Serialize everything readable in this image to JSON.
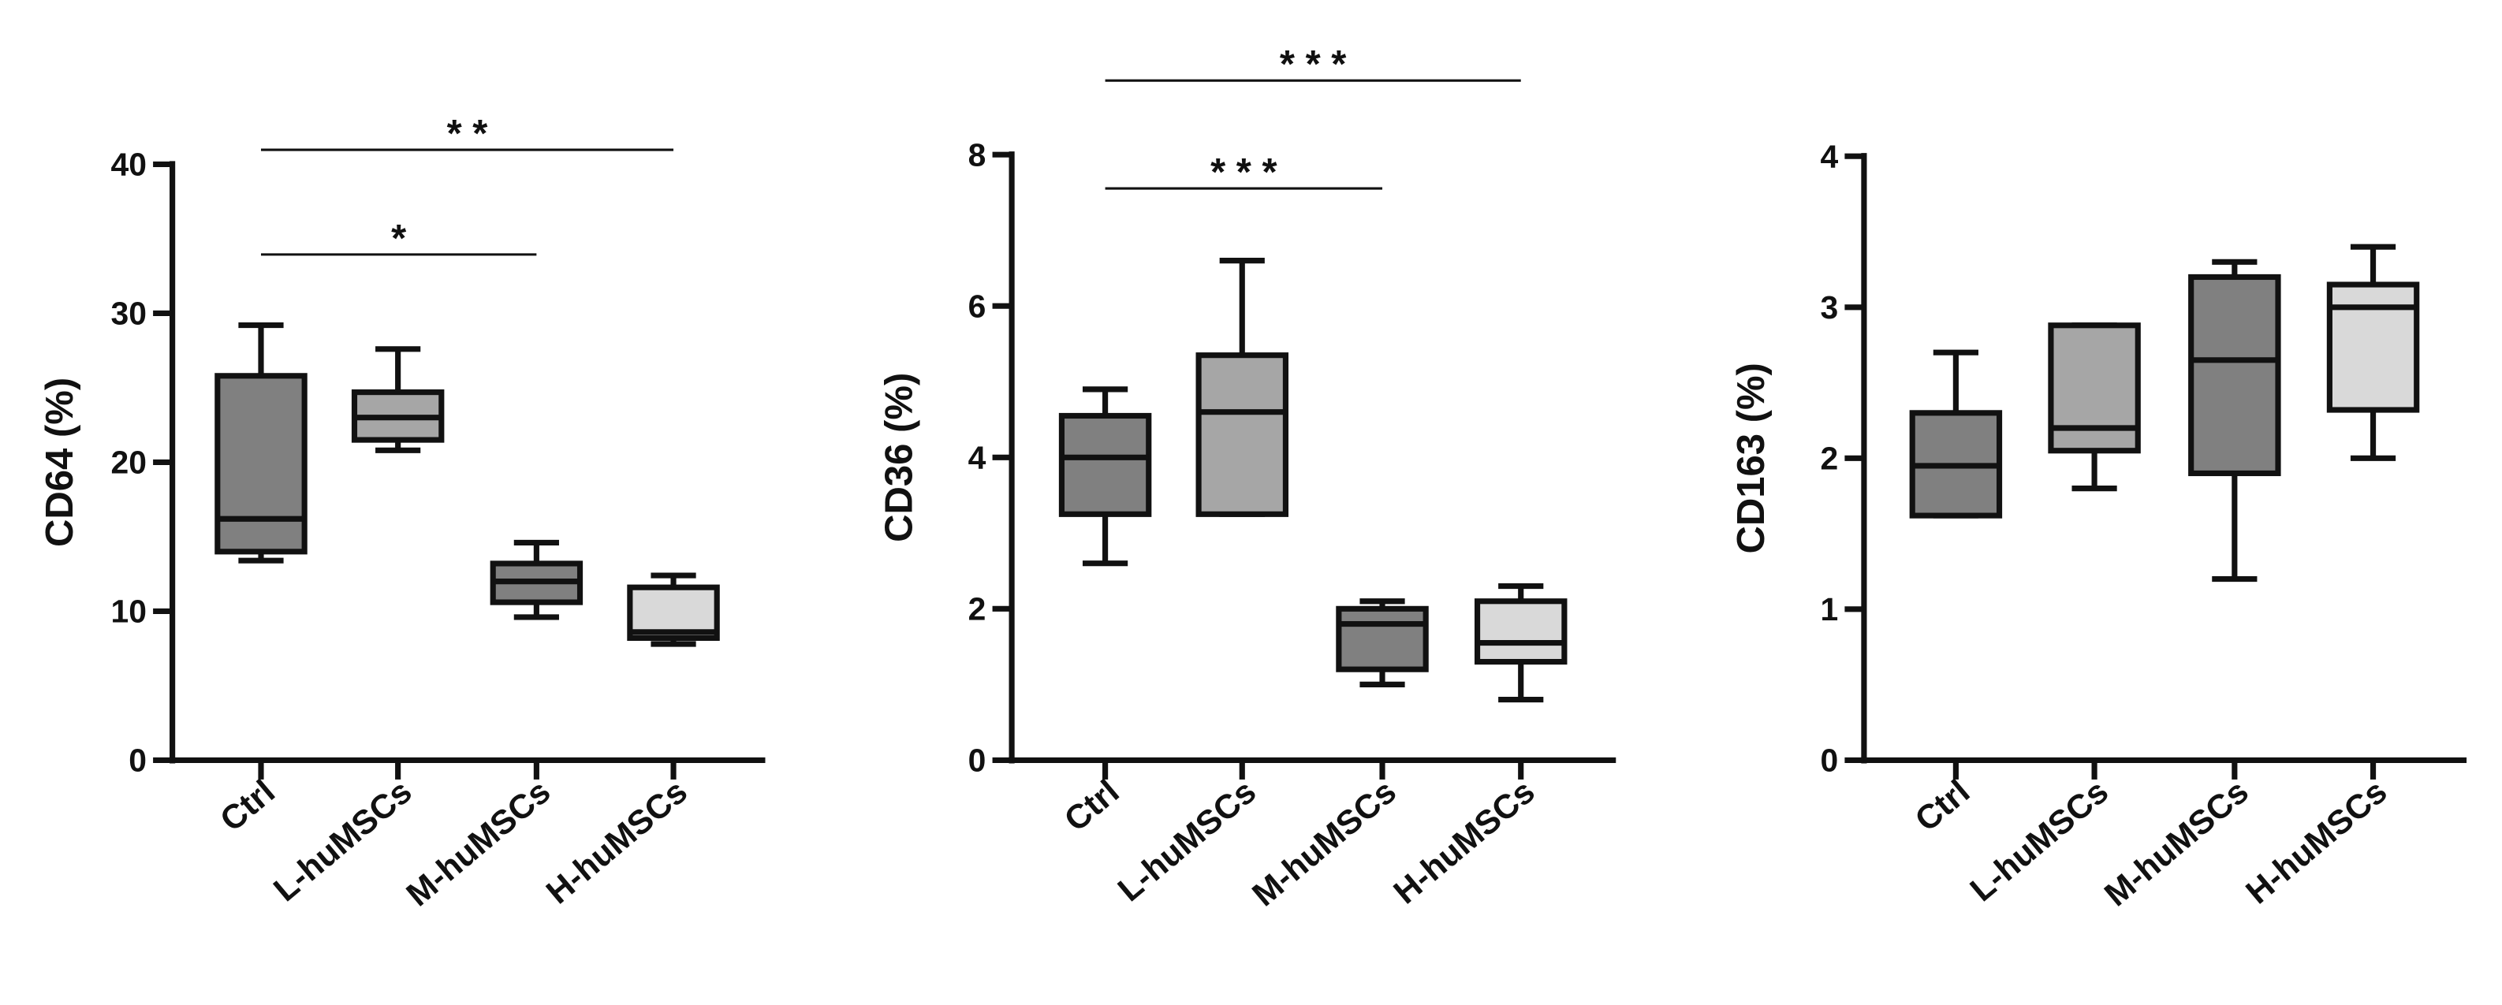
{
  "chart_data": [
    {
      "type": "box",
      "ylabel": "CD64 (%)",
      "categories": [
        "Ctrl",
        "L-huMSCs",
        "M-huMSCs",
        "H-huMSCs"
      ],
      "boxes": [
        {
          "min": 13.4,
          "q1": 14,
          "median": 16.2,
          "q3": 25.8,
          "max": 29.2,
          "color": "#808080"
        },
        {
          "min": 20.8,
          "q1": 21.5,
          "median": 23,
          "q3": 24.7,
          "max": 27.6,
          "color": "#a6a6a6"
        },
        {
          "min": 9.6,
          "q1": 10.6,
          "median": 12,
          "q3": 13.2,
          "max": 14.6,
          "color": "#808080"
        },
        {
          "min": 7.8,
          "q1": 8.2,
          "median": 8.6,
          "q3": 11.6,
          "max": 12.4,
          "color": "#d9d9d9"
        }
      ],
      "ylim": [
        0,
        40
      ],
      "yticks": [
        0,
        10,
        20,
        30,
        40
      ],
      "annotations": [
        {
          "text": "*",
          "start": "Ctrl",
          "end": "M-huMSCs"
        },
        {
          "text": "* *",
          "start": "Ctrl",
          "end": "H-huMSCs"
        }
      ]
    },
    {
      "type": "box",
      "ylabel": "CD36 (%)",
      "categories": [
        "Ctrl",
        "L-huMSCs",
        "M-huMSCs",
        "H-huMSCs"
      ],
      "boxes": [
        {
          "min": 2.6,
          "q1": 3.25,
          "median": 4.0,
          "q3": 4.55,
          "max": 4.9,
          "color": "#808080"
        },
        {
          "min": 3.25,
          "q1": 3.25,
          "median": 4.6,
          "q3": 5.35,
          "max": 6.6,
          "color": "#a6a6a6"
        },
        {
          "min": 1.0,
          "q1": 1.2,
          "median": 1.8,
          "q3": 2.0,
          "max": 2.1,
          "color": "#808080"
        },
        {
          "min": 0.8,
          "q1": 1.3,
          "median": 1.55,
          "q3": 2.1,
          "max": 2.3,
          "color": "#d9d9d9"
        }
      ],
      "ylim": [
        0,
        8
      ],
      "yticks": [
        0,
        2,
        4,
        6,
        8
      ],
      "annotations": [
        {
          "text": "* * *",
          "start": "Ctrl",
          "end": "M-huMSCs"
        },
        {
          "text": "* * *",
          "start": "Ctrl",
          "end": "H-huMSCs"
        }
      ]
    },
    {
      "type": "box",
      "ylabel": "CD163 (%)",
      "categories": [
        "Ctrl",
        "L-huMSCs",
        "M-huMSCs",
        "H-huMSCs"
      ],
      "boxes": [
        {
          "min": 1.62,
          "q1": 1.62,
          "median": 1.95,
          "q3": 2.3,
          "max": 2.7,
          "color": "#808080"
        },
        {
          "min": 1.8,
          "q1": 2.05,
          "median": 2.2,
          "q3": 2.88,
          "max": 2.88,
          "color": "#a6a6a6"
        },
        {
          "min": 1.2,
          "q1": 1.9,
          "median": 2.65,
          "q3": 3.2,
          "max": 3.3,
          "color": "#808080"
        },
        {
          "min": 2.0,
          "q1": 2.32,
          "median": 3.0,
          "q3": 3.15,
          "max": 3.4,
          "color": "#d9d9d9"
        }
      ],
      "ylim": [
        0,
        4
      ],
      "yticks": [
        0,
        1,
        2,
        3,
        4
      ],
      "annotations": []
    }
  ]
}
